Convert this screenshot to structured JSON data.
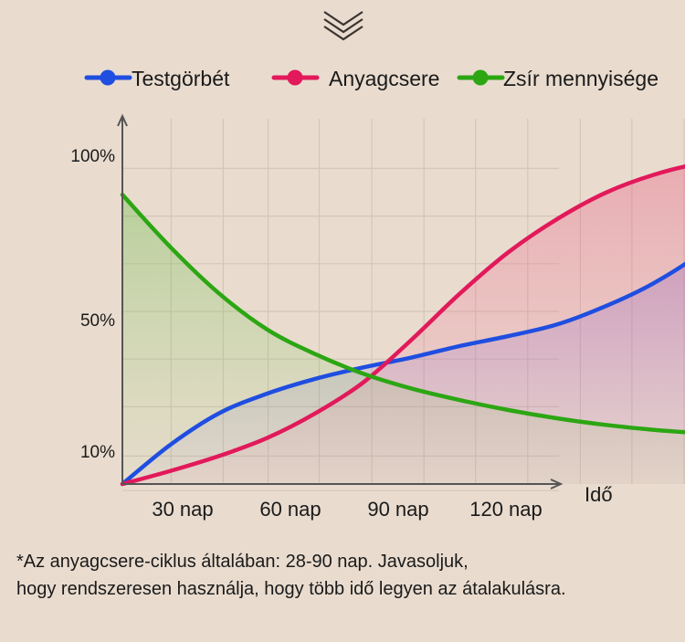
{
  "chart_data": {
    "type": "line",
    "xlabel": "Idő",
    "ylabel": "",
    "y_ticks": [
      {
        "label": "10%",
        "value": 10
      },
      {
        "label": "50%",
        "value": 50
      },
      {
        "label": "100%",
        "value": 100
      }
    ],
    "x_ticks": [
      {
        "label": "30 nap",
        "value": 30
      },
      {
        "label": "60 nap",
        "value": 60
      },
      {
        "label": "90 nap",
        "value": 90
      },
      {
        "label": "120 nap",
        "value": 120
      }
    ],
    "xlim": [
      0,
      140
    ],
    "ylim": [
      0,
      112
    ],
    "grid": true,
    "legend_position": "top",
    "series": [
      {
        "name": "Testgörbét",
        "color": "#1f4ee0",
        "x": [
          0,
          10,
          20,
          30,
          40,
          50,
          60,
          70,
          80,
          90,
          100,
          110,
          120,
          130
        ],
        "y": [
          0,
          12,
          21.5,
          27.5,
          32,
          35.5,
          38.5,
          42,
          45,
          48.5,
          54,
          61,
          70.5,
          84
        ],
        "markers": [
          {
            "x": 120,
            "y": 70.5
          }
        ]
      },
      {
        "name": "Anyagcsere",
        "color": "#e2195a",
        "x": [
          0,
          10,
          20,
          30,
          40,
          50,
          60,
          70,
          80,
          90,
          100,
          110,
          120,
          130
        ],
        "y": [
          0,
          4,
          8.5,
          14,
          21.5,
          31,
          44,
          58,
          70.5,
          80.5,
          88.5,
          94,
          97.5,
          98.5
        ],
        "markers": [
          {
            "x": 120,
            "y": 97.5
          }
        ]
      },
      {
        "name": "Zsír mennyisége",
        "color": "#2ca613",
        "x": [
          0,
          10,
          20,
          30,
          40,
          50,
          60,
          70,
          80,
          90,
          100,
          110,
          120,
          130
        ],
        "y": [
          88,
          72,
          58,
          47,
          39.5,
          33.5,
          29,
          25.5,
          22.5,
          20,
          18,
          16.5,
          15.5,
          15.5
        ],
        "markers": [
          {
            "x": 120,
            "y": 15.5
          }
        ]
      }
    ]
  },
  "footnote": {
    "line1": "*Az anyagcsere-ciklus általában: 28-90 nap. Javasoljuk,",
    "line2": "hogy rendszeresen használja, hogy több idő legyen az átalakulásra."
  },
  "icons": {
    "top": "chevron-down-double-icon"
  }
}
